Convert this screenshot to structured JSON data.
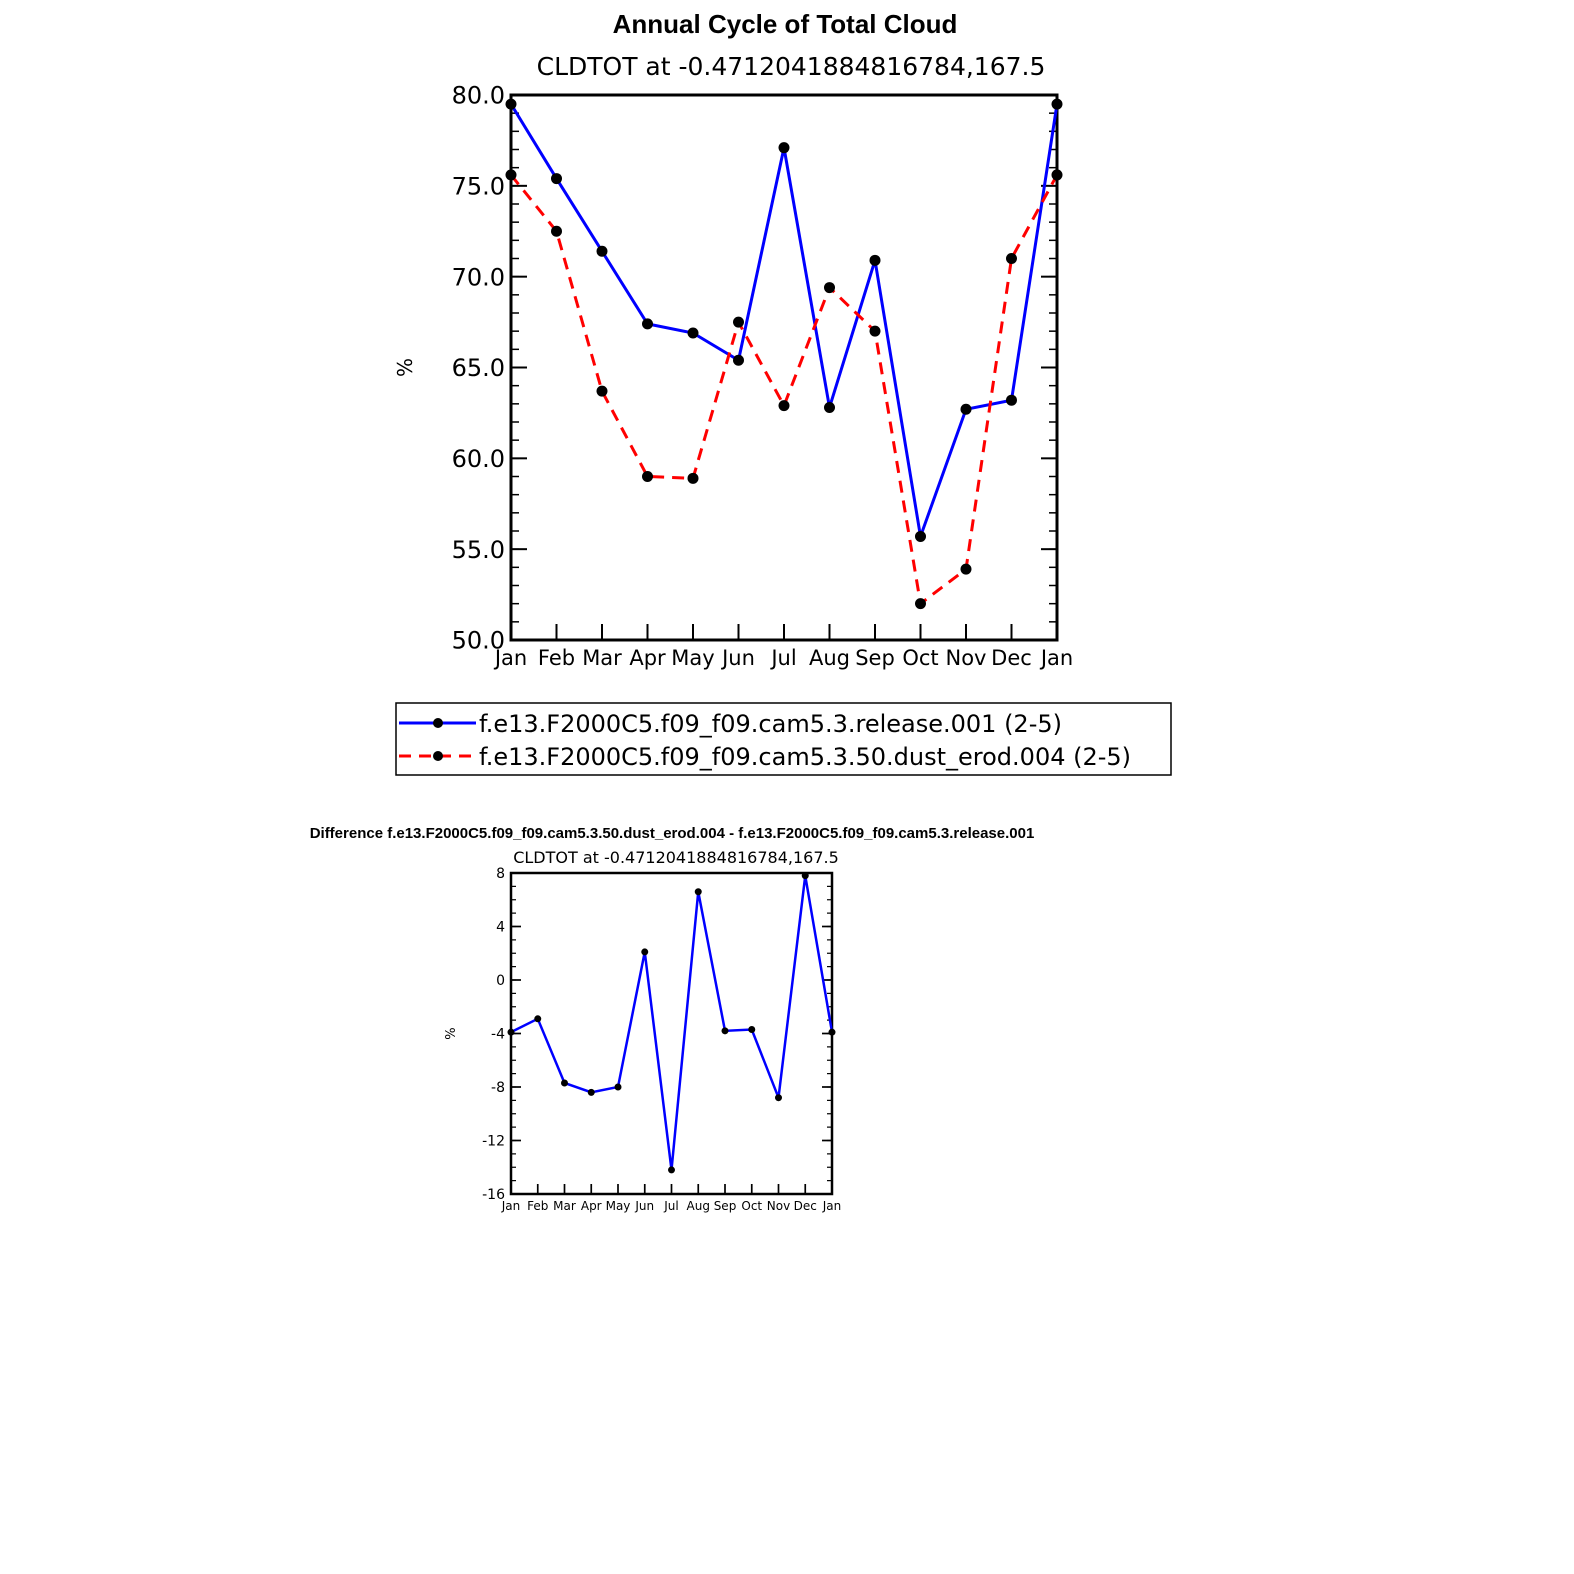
{
  "chart_data": [
    {
      "type": "line",
      "title": "Annual Cycle of Total Cloud",
      "subtitle": "CLDTOT at -0.4712041884816784,167.5",
      "xlabel": "",
      "ylabel": "%",
      "categories": [
        "Jan",
        "Feb",
        "Mar",
        "Apr",
        "May",
        "Jun",
        "Jul",
        "Aug",
        "Sep",
        "Oct",
        "Nov",
        "Dec",
        "Jan"
      ],
      "ylim": [
        50,
        80
      ],
      "yticks": [
        50,
        55,
        60,
        65,
        70,
        75,
        80
      ],
      "ytick_labels": [
        "50.0",
        "55.0",
        "60.0",
        "65.0",
        "70.0",
        "75.0",
        "80.0"
      ],
      "series": [
        {
          "name": "f.e13.F2000C5.f09_f09.cam5.3.release.001 (2-5)",
          "color": "#0000ff",
          "dash": "solid",
          "values": [
            79.5,
            75.4,
            71.4,
            67.4,
            66.9,
            65.4,
            77.1,
            62.8,
            70.9,
            55.7,
            62.7,
            63.2,
            79.5
          ]
        },
        {
          "name": "f.e13.F2000C5.f09_f09.cam5.3.50.dust_erod.004 (2-5)",
          "color": "#ff0000",
          "dash": "dashed",
          "values": [
            75.6,
            72.5,
            63.7,
            59.0,
            58.9,
            67.5,
            62.9,
            69.4,
            67.0,
            52.0,
            53.9,
            71.0,
            75.6
          ]
        }
      ],
      "legend": "bottom",
      "grid": false
    },
    {
      "type": "line",
      "title": "Difference f.e13.F2000C5.f09_f09.cam5.3.50.dust_erod.004 - f.e13.F2000C5.f09_f09.cam5.3.release.001",
      "subtitle": "CLDTOT at -0.4712041884816784,167.5",
      "xlabel": "",
      "ylabel": "%",
      "categories": [
        "Jan",
        "Feb",
        "Mar",
        "Apr",
        "May",
        "Jun",
        "Jul",
        "Aug",
        "Sep",
        "Oct",
        "Nov",
        "Dec",
        "Jan"
      ],
      "ylim": [
        -16,
        8
      ],
      "yticks": [
        -16,
        -12,
        -8,
        -4,
        0,
        4,
        8
      ],
      "ytick_labels": [
        "-16",
        "-12",
        "-8",
        "-4",
        "0",
        "4",
        "8"
      ],
      "series": [
        {
          "color": "#0000ff",
          "values": [
            -3.9,
            -2.9,
            -7.7,
            -8.4,
            -8.0,
            2.1,
            -14.2,
            6.6,
            -3.8,
            -3.7,
            -8.8,
            7.8,
            -3.9
          ]
        }
      ],
      "grid": false
    }
  ]
}
